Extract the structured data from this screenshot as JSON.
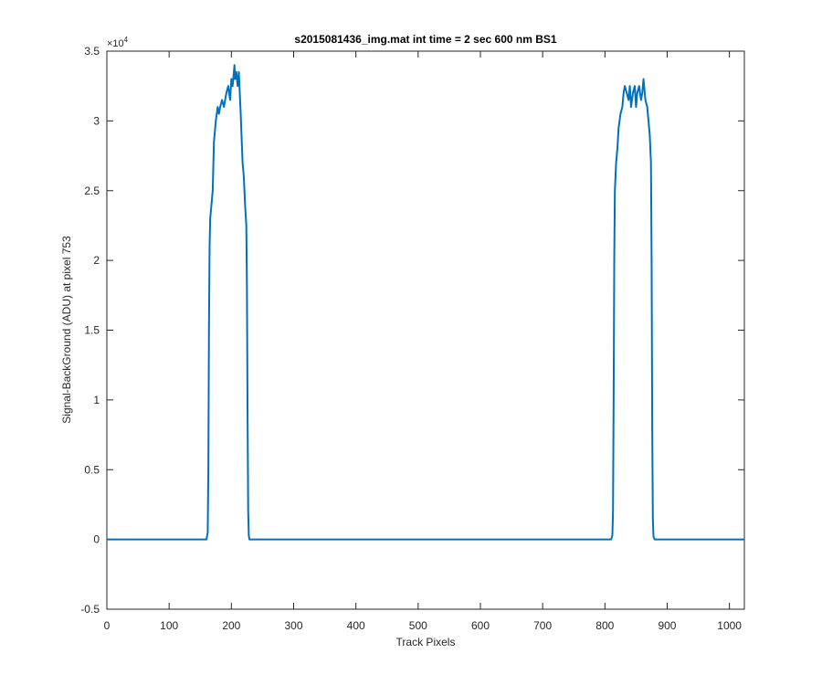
{
  "chart_data": {
    "type": "line",
    "title": "s2015081436_img.mat int time = 2 sec  600 nm BS1",
    "xlabel": "Track Pixels",
    "ylabel": "Signal-BackGround (ADU) at pixel 753",
    "xlim": [
      0,
      1024
    ],
    "ylim": [
      -5000,
      35000
    ],
    "x_ticks": [
      0,
      100,
      200,
      300,
      400,
      500,
      600,
      700,
      800,
      900,
      1000
    ],
    "y_ticks": [
      -0.5,
      0,
      0.5,
      1,
      1.5,
      2,
      2.5,
      3,
      3.5
    ],
    "y_exponent_base": "×10",
    "y_exponent_power": "4",
    "grid": false,
    "legend": "none",
    "line_color": "#0072BD",
    "series": [
      {
        "x": [
          0,
          100,
          160,
          162,
          163,
          164,
          165,
          166,
          168,
          170,
          172,
          175,
          178,
          180,
          182,
          185,
          188,
          190,
          192,
          195,
          198,
          200,
          202,
          204,
          205,
          206,
          208,
          210,
          212,
          215,
          218,
          220,
          222,
          224,
          225,
          226,
          227,
          228,
          229,
          230,
          235,
          300,
          400,
          500,
          600,
          700,
          800,
          810,
          812,
          813,
          814,
          815,
          816,
          818,
          820,
          822,
          825,
          828,
          830,
          832,
          835,
          838,
          840,
          842,
          845,
          848,
          850,
          852,
          855,
          858,
          860,
          862,
          865,
          868,
          870,
          872,
          874,
          875,
          876,
          877,
          878,
          880,
          900,
          1000,
          1024
        ],
        "y": [
          0,
          0,
          0,
          500,
          5000,
          15000,
          21000,
          23000,
          24000,
          25000,
          28500,
          30000,
          31000,
          30500,
          31000,
          31500,
          31000,
          31500,
          32000,
          32500,
          31500,
          33000,
          32500,
          33500,
          34000,
          33000,
          33500,
          32500,
          33500,
          30500,
          27000,
          26000,
          24000,
          22500,
          18000,
          9000,
          2000,
          300,
          0,
          0,
          0,
          0,
          0,
          0,
          0,
          0,
          0,
          0,
          300,
          2000,
          10000,
          20000,
          25000,
          27000,
          28000,
          29500,
          30500,
          31000,
          32000,
          32500,
          32000,
          31500,
          32500,
          31000,
          32000,
          32500,
          31000,
          32000,
          32500,
          31500,
          32000,
          33000,
          31500,
          31000,
          30000,
          29000,
          27000,
          20000,
          8000,
          1500,
          200,
          0,
          0,
          0,
          0
        ]
      }
    ]
  }
}
